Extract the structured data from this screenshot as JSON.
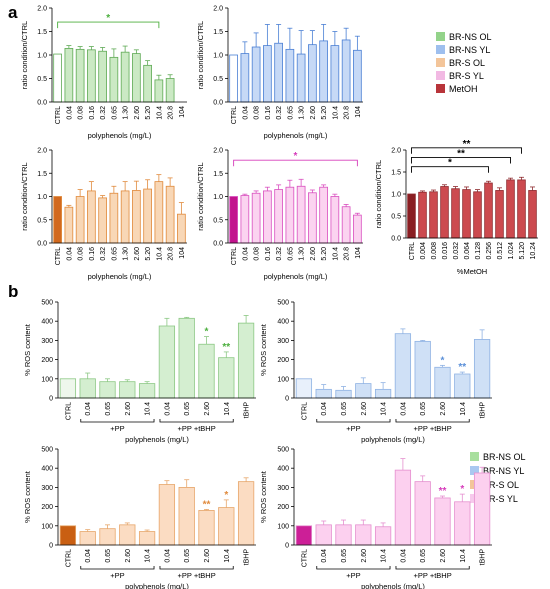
{
  "panels": {
    "a": "a",
    "b": "b"
  },
  "legend_a": [
    {
      "label": "BR-NS OL",
      "color": "#93d38a"
    },
    {
      "label": "BR-NS YL",
      "color": "#9ebfee"
    },
    {
      "label": "BR-S OL",
      "color": "#f3c59a"
    },
    {
      "label": "BR-S YL",
      "color": "#f2b9e3"
    },
    {
      "label": "MetOH",
      "color": "#b8343a"
    }
  ],
  "legend_b": [
    {
      "label": "BR-NS OL",
      "color": "#a8df9e"
    },
    {
      "label": "BR-NS YL",
      "color": "#a9c8f0"
    },
    {
      "label": "BR-S OL",
      "color": "#f3c59a"
    },
    {
      "label": "BR-S YL",
      "color": "#f6c9ec"
    }
  ],
  "chart_data": [
    {
      "id": "a1",
      "type": "bar",
      "ylabel": "ratio condition/CTRL",
      "xlabel": "polyphenols (mg/L)",
      "ylim": [
        0,
        2.0
      ],
      "yticks": [
        "0.0",
        "0.5",
        "1.0",
        "1.5",
        "2.0"
      ],
      "categories": [
        "CTRL",
        "0.04",
        "0.08",
        "0.16",
        "0.32",
        "0.65",
        "1.30",
        "2.60",
        "5.20",
        "10.4",
        "20.8",
        "104"
      ],
      "values": [
        1.02,
        1.14,
        1.12,
        1.11,
        1.08,
        0.95,
        1.06,
        1.03,
        0.78,
        0.47,
        0.5,
        0
      ],
      "errors": [
        0,
        0.06,
        0.06,
        0.07,
        0.08,
        0.18,
        0.13,
        0.08,
        0.1,
        0.1,
        0.08,
        0
      ],
      "color": "#cbe9c4",
      "edge": "#5faa55",
      "ctrl_color": "#ffffff",
      "annotations": [
        "*"
      ],
      "annotation_color": "#4caf3e"
    },
    {
      "id": "a2",
      "type": "bar",
      "ylabel": "ratio condition/CTRL",
      "xlabel": "polyphenols (mg/L)",
      "ylim": [
        0,
        2.0
      ],
      "yticks": [
        "0.0",
        "0.5",
        "1.0",
        "1.5",
        "2.0"
      ],
      "categories": [
        "CTRL",
        "0.04",
        "0.08",
        "0.16",
        "0.32",
        "0.65",
        "1.30",
        "2.60",
        "5.20",
        "10.4",
        "20.8",
        "104"
      ],
      "values": [
        1.0,
        1.03,
        1.17,
        1.2,
        1.25,
        1.12,
        1.02,
        1.22,
        1.3,
        1.2,
        1.32,
        1.1
      ],
      "errors": [
        0,
        0.25,
        0.3,
        0.45,
        0.4,
        0.45,
        0.5,
        0.3,
        0.35,
        0.3,
        0.25,
        0.3
      ],
      "color": "#c6d9f6",
      "edge": "#4a7fd4",
      "ctrl_color": "#ffffff",
      "annotations": []
    },
    {
      "id": "a3",
      "type": "bar",
      "ylabel": "ratio condition/CTRL",
      "xlabel": "polyphenols (mg/L)",
      "ylim": [
        0,
        2.0
      ],
      "yticks": [
        "0.0",
        "0.5",
        "1.0",
        "1.5",
        "2.0"
      ],
      "categories": [
        "CTRL",
        "0.04",
        "0.08",
        "0.16",
        "0.32",
        "0.65",
        "1.30",
        "2.60",
        "5.20",
        "10.4",
        "20.8",
        "104"
      ],
      "values": [
        1.0,
        0.77,
        1.0,
        1.12,
        0.97,
        1.07,
        1.12,
        1.13,
        1.16,
        1.32,
        1.22,
        0.62
      ],
      "errors": [
        0,
        0.04,
        0.15,
        0.2,
        0.05,
        0.15,
        0.2,
        0.2,
        0.2,
        0.15,
        0.18,
        0.25
      ],
      "color": "#f8d7b6",
      "edge": "#e08a3c",
      "ctrl_color": "#d2691e",
      "annotations": []
    },
    {
      "id": "a4",
      "type": "bar",
      "ylabel": "ratio condition/CTRL",
      "xlabel": "polyphenols (mg/L)",
      "ylim": [
        0,
        2.0
      ],
      "yticks": [
        "0.0",
        "0.5",
        "1.0",
        "1.5",
        "2.0"
      ],
      "categories": [
        "CTRL",
        "0.04",
        "0.08",
        "0.16",
        "0.32",
        "0.65",
        "1.30",
        "2.60",
        "5.20",
        "10.4",
        "20.8",
        "104"
      ],
      "values": [
        1.0,
        1.02,
        1.07,
        1.12,
        1.15,
        1.2,
        1.22,
        1.08,
        1.2,
        1.0,
        0.78,
        0.6
      ],
      "errors": [
        0,
        0.03,
        0.05,
        0.08,
        0.1,
        0.15,
        0.15,
        0.06,
        0.05,
        0.05,
        0.05,
        0.04
      ],
      "color": "#fbd3f0",
      "edge": "#d94fbf",
      "ctrl_color": "#c2138d",
      "annotations": [
        "*"
      ],
      "annotation_color": "#d63dbb"
    },
    {
      "id": "a5",
      "type": "bar",
      "ylabel": "ratio condition/CTRL",
      "xlabel": "%MetOH",
      "ylim": [
        0,
        2.0
      ],
      "yticks": [
        "0.0",
        "0.5",
        "1.0",
        "1.5",
        "2.0"
      ],
      "categories": [
        "CTRL",
        "0.004",
        "0.008",
        "0.016",
        "0.032",
        "0.064",
        "0.128",
        "0.256",
        "0.512",
        "1.024",
        "5.120",
        "10.24"
      ],
      "values": [
        1.0,
        1.04,
        1.05,
        1.17,
        1.12,
        1.1,
        1.05,
        1.25,
        1.08,
        1.32,
        1.32,
        1.08
      ],
      "errors": [
        0,
        0.03,
        0.04,
        0.04,
        0.05,
        0.06,
        0.05,
        0.04,
        0.06,
        0.04,
        0.06,
        0.08
      ],
      "color": "#cc4a4f",
      "edge": "#8e2a2e",
      "ctrl_color": "#8a1e22",
      "annotations": [
        "*",
        "**",
        "**"
      ],
      "annotation_color": "#000000"
    },
    {
      "id": "b1",
      "type": "bar",
      "ylabel": "% ROS content",
      "xlabel": "polyphenols (mg/L)",
      "ylim": [
        0,
        500
      ],
      "yticks": [
        "0",
        "100",
        "200",
        "300",
        "400",
        "500"
      ],
      "categories": [
        "CTRL",
        "0.04",
        "0.65",
        "2.60",
        "10.4",
        "0.04",
        "0.65",
        "2.60",
        "10.4",
        "tBHP"
      ],
      "groups": [
        "+PP",
        "+PP +tBHP"
      ],
      "values": [
        100,
        100,
        85,
        85,
        75,
        375,
        415,
        280,
        210,
        390
      ],
      "errors": [
        0,
        30,
        15,
        10,
        10,
        40,
        5,
        40,
        30,
        40
      ],
      "color": "#d4eed0",
      "edge": "#8cc884",
      "ctrl_color": "#eef7ec",
      "annotations": [
        "*",
        "**"
      ],
      "annotation_color": "#4caf3e"
    },
    {
      "id": "b2",
      "type": "bar",
      "ylabel": "% ROS content",
      "xlabel": "polyphenols (mg/L)",
      "ylim": [
        0,
        500
      ],
      "yticks": [
        "0",
        "100",
        "200",
        "300",
        "400",
        "500"
      ],
      "categories": [
        "CTRL",
        "0.04",
        "0.65",
        "2.60",
        "10.4",
        "0.04",
        "0.65",
        "2.60",
        "10.4",
        "tBHP"
      ],
      "groups": [
        "+PP",
        "+PP +tBHP"
      ],
      "values": [
        100,
        45,
        40,
        75,
        45,
        335,
        295,
        160,
        125,
        305
      ],
      "errors": [
        0,
        25,
        20,
        30,
        35,
        25,
        5,
        10,
        10,
        50
      ],
      "color": "#cfe0f6",
      "edge": "#8fb2e3",
      "ctrl_color": "#e8f0fb",
      "annotations": [
        "*",
        "**"
      ],
      "annotation_color": "#5a8fd8"
    },
    {
      "id": "b3",
      "type": "bar",
      "ylabel": "% ROS content",
      "xlabel": "polyphenols (mg/L)",
      "ylim": [
        0,
        500
      ],
      "yticks": [
        "0",
        "100",
        "200",
        "300",
        "400",
        "500"
      ],
      "categories": [
        "CTRL",
        "0.04",
        "0.65",
        "2.60",
        "10.4",
        "0.04",
        "0.65",
        "2.60",
        "10.4",
        "tBHP"
      ],
      "groups": [
        "+PP",
        "+PP +tBHP"
      ],
      "values": [
        100,
        70,
        85,
        105,
        70,
        315,
        300,
        180,
        195,
        330
      ],
      "errors": [
        0,
        10,
        20,
        10,
        8,
        20,
        40,
        5,
        40,
        20
      ],
      "color": "#fbdcc2",
      "edge": "#e7a66a",
      "ctrl_color": "#c95f12",
      "annotations": [
        "**",
        "*"
      ],
      "annotation_color": "#e08a3c"
    },
    {
      "id": "b4",
      "type": "bar",
      "ylabel": "% ROS content",
      "xlabel": "polyphenols (mg/L)",
      "ylim": [
        0,
        500
      ],
      "yticks": [
        "0",
        "100",
        "200",
        "300",
        "400",
        "500"
      ],
      "categories": [
        "CTRL",
        "0.04",
        "0.65",
        "2.60",
        "10.4",
        "0.04",
        "0.65",
        "2.60",
        "10.4",
        "tBHP"
      ],
      "groups": [
        "+PP",
        "+PP +tBHP"
      ],
      "values": [
        100,
        105,
        105,
        105,
        95,
        390,
        330,
        245,
        225,
        375
      ],
      "errors": [
        0,
        20,
        25,
        25,
        20,
        60,
        30,
        10,
        40,
        30
      ],
      "color": "#fcd0ef",
      "edge": "#e58fcf",
      "ctrl_color": "#cc1f97",
      "annotations": [
        "**",
        "*"
      ],
      "annotation_color": "#d63dbb"
    }
  ]
}
